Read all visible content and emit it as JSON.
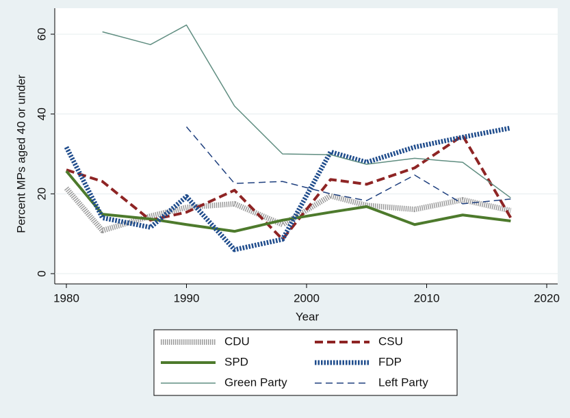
{
  "chart_data": {
    "type": "line",
    "xlabel": "Year",
    "ylabel": "Percent MPs aged 40 or under",
    "x": [
      1980,
      1983,
      1987,
      1990,
      1994,
      1998,
      2002,
      2005,
      2009,
      2013,
      2017
    ],
    "series": [
      {
        "name": "CDU",
        "color": "#9a9a9a",
        "values": [
          21.4,
          10.8,
          14.4,
          16.6,
          17.5,
          12.3,
          19.5,
          17.1,
          16.1,
          18.5,
          15.8
        ]
      },
      {
        "name": "CSU",
        "color": "#8e2424",
        "values": [
          26,
          23.1,
          13.4,
          15.4,
          20.9,
          8.6,
          23.6,
          22.4,
          26.5,
          34.6,
          14
        ]
      },
      {
        "name": "SPD",
        "color": "#4d7a2c",
        "values": [
          25.7,
          14.9,
          13.7,
          12.3,
          10.6,
          13.4,
          15.4,
          16.8,
          12.3,
          14.7,
          13.2
        ]
      },
      {
        "name": "FDP",
        "color": "#1f4c8c",
        "values": [
          31.7,
          14,
          11.6,
          19.3,
          6,
          8.6,
          30.5,
          27.9,
          31.7,
          34.2,
          36.5
        ]
      },
      {
        "name": "Green Party",
        "color": "#5f8d80",
        "values": [
          null,
          60.6,
          57.4,
          62.3,
          42,
          30,
          29.8,
          27.4,
          28.9,
          27.9,
          19
        ]
      },
      {
        "name": "Left Party",
        "color": "#1e3f7e",
        "values": [
          null,
          null,
          null,
          36.8,
          22.6,
          23.1,
          20,
          18.3,
          24.7,
          17.5,
          18.7
        ]
      }
    ],
    "xlim": [
      1980,
      2020
    ],
    "xticks": [
      1980,
      1990,
      2000,
      2010,
      2020
    ],
    "ylim": [
      0,
      60
    ],
    "yticks": [
      0,
      20,
      40,
      60
    ],
    "grid": true
  }
}
